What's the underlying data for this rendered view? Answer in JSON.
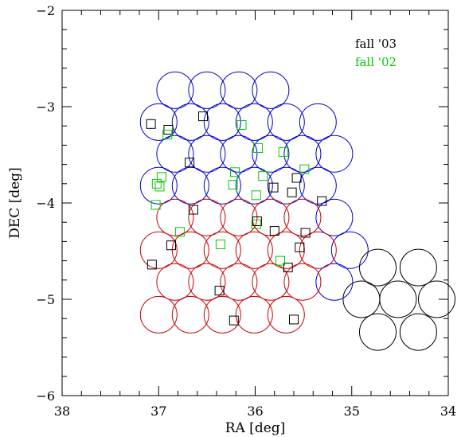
{
  "chart_data": {
    "type": "scatter",
    "xlabel": "RA [deg]",
    "ylabel": "DEC [deg]",
    "xlim": [
      38,
      34
    ],
    "ylim": [
      -6,
      -2
    ],
    "x_ticks": [
      38,
      37,
      36,
      35,
      34
    ],
    "x_tick_labels": [
      "38",
      "37",
      "36",
      "35",
      "34"
    ],
    "y_ticks": [
      -6,
      -5,
      -4,
      -3,
      -2
    ],
    "y_tick_labels": [
      "−6",
      "−5",
      "−4",
      "−3",
      "−2"
    ],
    "grid": false,
    "legend_position": "top-right",
    "fields": {
      "radius_deg": 0.19,
      "groups": [
        {
          "color": "#0000cc",
          "centers": [
            [
              36.83,
              -2.83
            ],
            [
              36.5,
              -2.83
            ],
            [
              36.17,
              -2.83
            ],
            [
              35.84,
              -2.83
            ],
            [
              37.0,
              -3.16
            ],
            [
              36.67,
              -3.16
            ],
            [
              36.34,
              -3.16
            ],
            [
              36.01,
              -3.16
            ],
            [
              35.68,
              -3.16
            ],
            [
              35.35,
              -3.16
            ],
            [
              36.83,
              -3.49
            ],
            [
              36.5,
              -3.49
            ],
            [
              36.17,
              -3.49
            ],
            [
              35.84,
              -3.49
            ],
            [
              35.51,
              -3.49
            ],
            [
              35.18,
              -3.49
            ],
            [
              37.0,
              -3.82
            ],
            [
              36.67,
              -3.82
            ],
            [
              36.34,
              -3.82
            ],
            [
              36.01,
              -3.82
            ],
            [
              35.68,
              -3.82
            ],
            [
              35.35,
              -3.82
            ],
            [
              35.18,
              -4.15
            ],
            [
              35.02,
              -4.49
            ],
            [
              35.18,
              -4.82
            ]
          ]
        },
        {
          "color": "#cc0000",
          "centers": [
            [
              36.83,
              -4.15
            ],
            [
              36.5,
              -4.15
            ],
            [
              36.17,
              -4.15
            ],
            [
              35.84,
              -4.15
            ],
            [
              35.51,
              -4.15
            ],
            [
              37.0,
              -4.49
            ],
            [
              36.67,
              -4.49
            ],
            [
              36.34,
              -4.49
            ],
            [
              36.01,
              -4.49
            ],
            [
              35.68,
              -4.49
            ],
            [
              35.35,
              -4.49
            ],
            [
              36.83,
              -4.82
            ],
            [
              36.5,
              -4.82
            ],
            [
              36.17,
              -4.82
            ],
            [
              35.84,
              -4.82
            ],
            [
              35.51,
              -4.82
            ],
            [
              37.0,
              -5.16
            ],
            [
              36.67,
              -5.16
            ],
            [
              36.34,
              -5.16
            ],
            [
              36.01,
              -5.16
            ],
            [
              35.68,
              -5.16
            ]
          ]
        },
        {
          "color": "#000000",
          "centers": [
            [
              34.73,
              -4.67
            ],
            [
              34.31,
              -4.67
            ],
            [
              34.9,
              -5.0
            ],
            [
              34.52,
              -5.0
            ],
            [
              34.12,
              -5.0
            ],
            [
              34.73,
              -5.34
            ],
            [
              34.31,
              -5.34
            ]
          ]
        }
      ]
    },
    "series": [
      {
        "name": "fall '03",
        "color": "#000000",
        "marker": "square",
        "points": [
          [
            37.08,
            -3.18
          ],
          [
            36.9,
            -3.24
          ],
          [
            36.54,
            -3.1
          ],
          [
            36.68,
            -3.58
          ],
          [
            37.07,
            -4.64
          ],
          [
            36.87,
            -4.44
          ],
          [
            36.64,
            -4.07
          ],
          [
            36.37,
            -4.91
          ],
          [
            36.22,
            -5.22
          ],
          [
            35.98,
            -4.19
          ],
          [
            35.8,
            -4.29
          ],
          [
            35.81,
            -3.84
          ],
          [
            35.62,
            -3.89
          ],
          [
            35.57,
            -3.74
          ],
          [
            35.31,
            -3.98
          ],
          [
            35.54,
            -4.46
          ],
          [
            35.48,
            -4.31
          ],
          [
            35.66,
            -4.67
          ],
          [
            35.6,
            -5.21
          ]
        ]
      },
      {
        "name": "fall '02",
        "color": "#00cc00",
        "marker": "square",
        "points": [
          [
            36.91,
            -3.29
          ],
          [
            37.02,
            -3.8
          ],
          [
            36.99,
            -3.83
          ],
          [
            36.97,
            -3.73
          ],
          [
            37.03,
            -4.02
          ],
          [
            36.78,
            -4.3
          ],
          [
            36.36,
            -4.43
          ],
          [
            36.14,
            -3.19
          ],
          [
            35.97,
            -3.43
          ],
          [
            36.21,
            -3.68
          ],
          [
            36.23,
            -3.81
          ],
          [
            35.99,
            -3.92
          ],
          [
            35.92,
            -3.72
          ],
          [
            35.71,
            -3.47
          ],
          [
            35.49,
            -3.65
          ],
          [
            35.99,
            -4.22
          ],
          [
            35.74,
            -4.6
          ]
        ]
      }
    ]
  }
}
